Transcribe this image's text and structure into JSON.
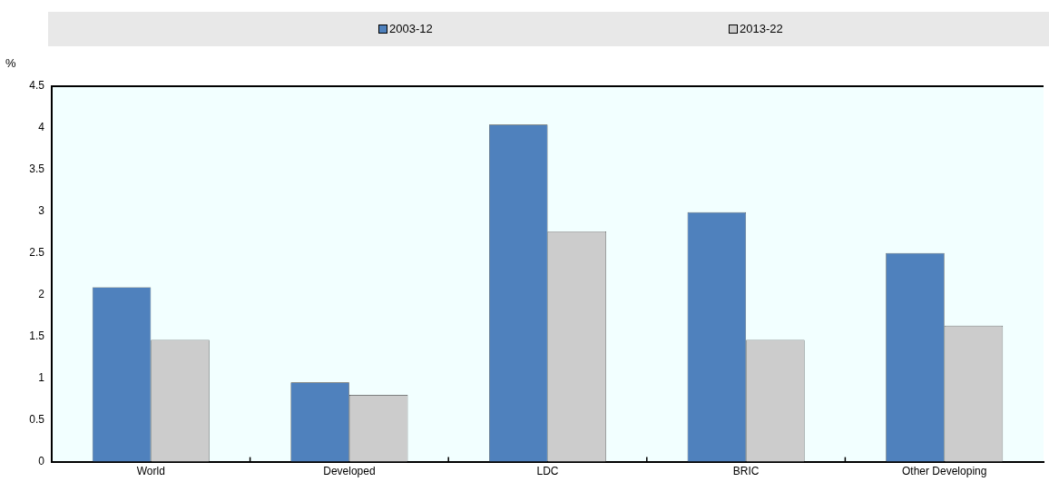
{
  "chart_data": {
    "type": "bar",
    "ylabel": "%",
    "categories": [
      "World",
      "Developed",
      "LDC",
      "BRIC",
      "Other Developing"
    ],
    "series": [
      {
        "name": "2003-12",
        "color": "#4f81bd",
        "values": [
          2.09,
          0.95,
          4.04,
          2.99,
          2.5
        ]
      },
      {
        "name": "2013-22",
        "color": "#cccccc",
        "values": [
          1.46,
          0.8,
          2.76,
          1.46,
          1.63
        ]
      }
    ],
    "ylim": [
      0,
      4.5
    ],
    "yticks": [
      0,
      0.5,
      1,
      1.5,
      2,
      2.5,
      3,
      3.5,
      4,
      4.5
    ],
    "legend": "top"
  }
}
